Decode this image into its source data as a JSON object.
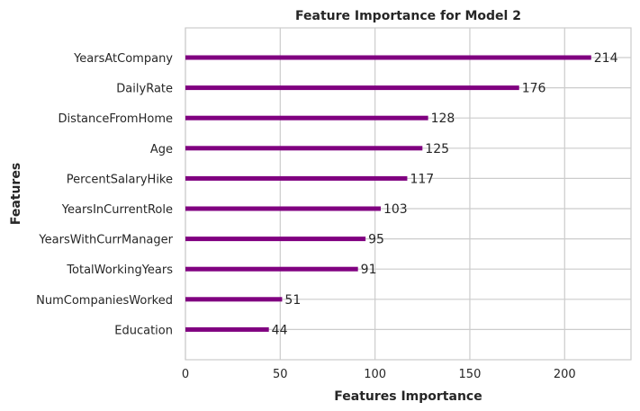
{
  "chart_data": {
    "type": "bar",
    "orientation": "horizontal",
    "title": "Feature Importance for Model 2",
    "xlabel": "Features Importance",
    "ylabel": "Features",
    "categories": [
      "YearsAtCompany",
      "DailyRate",
      "DistanceFromHome",
      "Age",
      "PercentSalaryHike",
      "YearsInCurrentRole",
      "YearsWithCurrManager",
      "TotalWorkingYears",
      "NumCompaniesWorked",
      "Education"
    ],
    "values": [
      214,
      176,
      128,
      125,
      117,
      103,
      95,
      91,
      51,
      44
    ],
    "xlim": [
      0,
      235
    ],
    "xticks": [
      0,
      50,
      100,
      150,
      200
    ],
    "grid": true,
    "bar_color": "#800080"
  }
}
